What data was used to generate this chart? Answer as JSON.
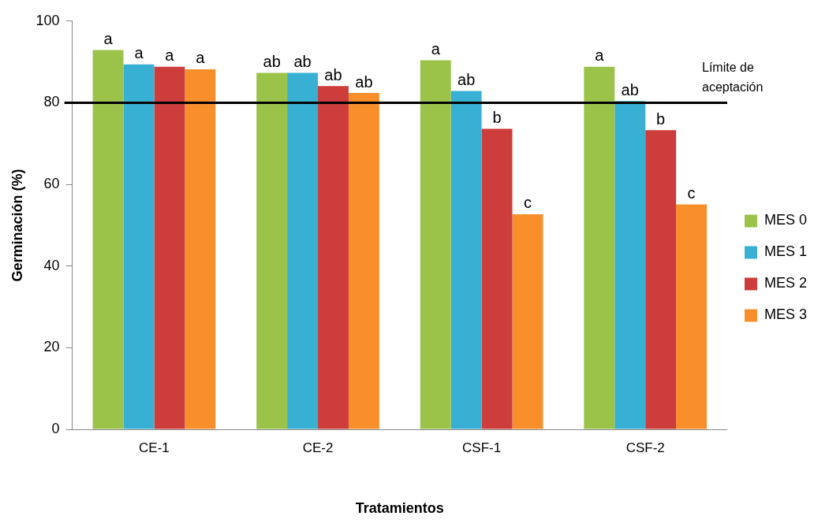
{
  "chart_data": {
    "type": "bar",
    "xlabel": "Tratamientos",
    "ylabel": "Germinación (%)",
    "categories": [
      "CE-1",
      "CE-2",
      "CSF-1",
      "CSF-2"
    ],
    "series": [
      {
        "name": "MES 0",
        "color": "#9bc34a",
        "values": [
          92.9,
          87.3,
          90.4,
          88.8
        ],
        "value_labels": [
          "a",
          "ab",
          "a",
          "a"
        ]
      },
      {
        "name": "MES 1",
        "color": "#37b0d3",
        "values": [
          89.4,
          87.3,
          82.9,
          80.4
        ],
        "value_labels": [
          "a",
          "ab",
          "ab",
          "ab"
        ]
      },
      {
        "name": "MES 2",
        "color": "#cc3d3c",
        "values": [
          88.8,
          84.1,
          73.6,
          73.3
        ],
        "value_labels": [
          "a",
          "ab",
          "b",
          "b"
        ]
      },
      {
        "name": "MES 3",
        "color": "#f98f2b",
        "values": [
          88.2,
          82.4,
          52.7,
          55.1
        ],
        "value_labels": [
          "a",
          "ab",
          "c",
          "c"
        ]
      }
    ],
    "ylim": [
      0,
      100
    ],
    "yticks": [
      0,
      20,
      40,
      60,
      80,
      100
    ],
    "ref_lines": [
      {
        "axis": "y",
        "value": 80,
        "label": "Límite de aceptación",
        "color": "#000000"
      }
    ],
    "grid": false,
    "legend": "right"
  }
}
